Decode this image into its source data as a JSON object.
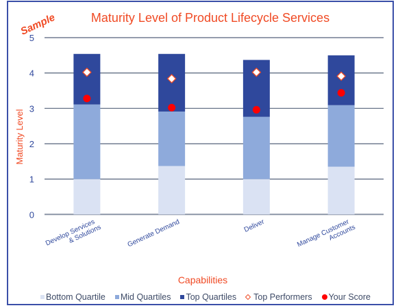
{
  "watermark": "Sample",
  "chart_data": {
    "type": "bar",
    "stacked": true,
    "title": "Maturity Level of Product Lifecycle Services",
    "xlabel": "Capabilities",
    "ylabel": "Maturity Level",
    "ylim": [
      0,
      5
    ],
    "yticks": [
      "0",
      "1",
      "2",
      "3",
      "4",
      "5"
    ],
    "grid": true,
    "legend_position": "bottom",
    "categories": [
      [
        "Develop Services",
        "& Solutions"
      ],
      [
        "Generate Demand"
      ],
      [
        "Deliver"
      ],
      [
        "Manage Customer",
        "Accounts"
      ]
    ],
    "series": [
      {
        "name": "Bottom Quartile",
        "type": "bar",
        "color": "#dae2f3",
        "values": [
          1.0,
          1.37,
          1.0,
          1.35
        ]
      },
      {
        "name": "Mid Quartiles",
        "type": "bar",
        "color": "#8eaadb",
        "values": [
          2.11,
          1.54,
          1.76,
          1.74
        ]
      },
      {
        "name": "Top Quartiles",
        "type": "bar",
        "color": "#2f489c",
        "values": [
          1.43,
          1.63,
          1.61,
          1.41
        ]
      },
      {
        "name": "Top Performers",
        "type": "marker",
        "marker": "diamond",
        "color": "#f04a24",
        "values": [
          4.02,
          3.84,
          4.02,
          3.91
        ]
      },
      {
        "name": "Your Score",
        "type": "marker",
        "marker": "circle",
        "color": "#ff0000",
        "values": [
          3.28,
          3.02,
          2.96,
          3.44
        ]
      }
    ]
  }
}
